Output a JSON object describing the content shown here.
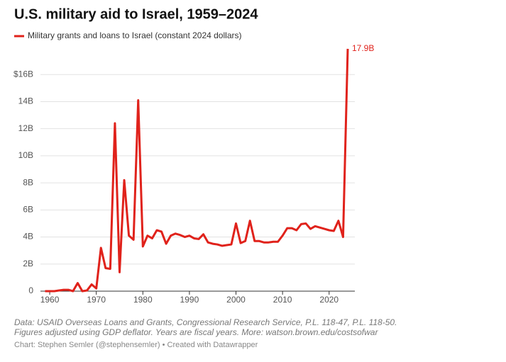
{
  "chart_data": {
    "type": "line",
    "title": "U.S. military aid to Israel, 1959–2024",
    "x": [
      1959,
      1960,
      1961,
      1962,
      1963,
      1964,
      1965,
      1966,
      1967,
      1968,
      1969,
      1970,
      1971,
      1972,
      1973,
      1974,
      1975,
      1976,
      1977,
      1978,
      1979,
      1980,
      1981,
      1982,
      1983,
      1984,
      1985,
      1986,
      1987,
      1988,
      1989,
      1990,
      1991,
      1992,
      1993,
      1994,
      1995,
      1996,
      1997,
      1998,
      1999,
      2000,
      2001,
      2002,
      2003,
      2004,
      2005,
      2006,
      2007,
      2008,
      2009,
      2010,
      2011,
      2012,
      2013,
      2014,
      2015,
      2016,
      2017,
      2018,
      2019,
      2020,
      2021,
      2022,
      2023,
      2024
    ],
    "series": [
      {
        "name": "Military grants and loans to Israel (constant 2024 dollars)",
        "color": "#e0221b",
        "values": [
          0,
          0,
          0,
          0.05,
          0.1,
          0.1,
          0,
          0.6,
          0,
          0.05,
          0.5,
          0.2,
          3.2,
          1.7,
          1.65,
          12.4,
          1.4,
          8.2,
          4.1,
          3.8,
          14.1,
          3.3,
          4.1,
          3.9,
          4.5,
          4.4,
          3.5,
          4.1,
          4.25,
          4.15,
          4.0,
          4.1,
          3.9,
          3.85,
          4.2,
          3.6,
          3.5,
          3.45,
          3.35,
          3.4,
          3.45,
          5.0,
          3.55,
          3.7,
          5.2,
          3.7,
          3.7,
          3.6,
          3.6,
          3.65,
          3.65,
          4.1,
          4.65,
          4.65,
          4.5,
          4.95,
          5.0,
          4.6,
          4.8,
          4.7,
          4.6,
          4.5,
          4.45,
          5.2,
          4.0,
          17.9
        ],
        "value_labels": [
          null,
          null,
          null,
          null,
          null,
          null,
          null,
          null,
          null,
          null,
          null,
          null,
          null,
          null,
          null,
          null,
          null,
          null,
          null,
          null,
          null,
          null,
          null,
          null,
          null,
          null,
          null,
          null,
          null,
          null,
          null,
          null,
          null,
          null,
          null,
          null,
          null,
          null,
          null,
          null,
          null,
          null,
          null,
          null,
          null,
          null,
          null,
          null,
          null,
          null,
          null,
          null,
          null,
          null,
          null,
          null,
          null,
          null,
          null,
          null,
          null,
          null,
          null,
          null,
          null,
          "17.9B"
        ]
      }
    ],
    "xlim": [
      1959,
      2024
    ],
    "xticks": [
      1960,
      1970,
      1980,
      1990,
      2000,
      2010,
      2020
    ],
    "ylim": [
      0,
      18
    ],
    "yticks": [
      0,
      {
        "value": 2,
        "label": "2B"
      },
      {
        "value": 4,
        "label": "4B"
      },
      {
        "value": 6,
        "label": "6B"
      },
      {
        "value": 8,
        "label": "8B"
      },
      {
        "value": 10,
        "label": "10B"
      },
      {
        "value": 12,
        "label": "12B"
      },
      {
        "value": 14,
        "label": "14B"
      },
      {
        "value": 16,
        "label": "$16B"
      }
    ],
    "grid": true,
    "notes": [
      "Data: USAID Overseas Loans and Grants, Congressional Research Service, P.L. 118-47, P.L. 118-50.",
      "Figures adjusted using GDP deflator. Years are fiscal years. More: watson.brown.edu/costsofwar"
    ],
    "credit": "Chart: Stephen Semler (@stephensemler) • Created with Datawrapper"
  }
}
